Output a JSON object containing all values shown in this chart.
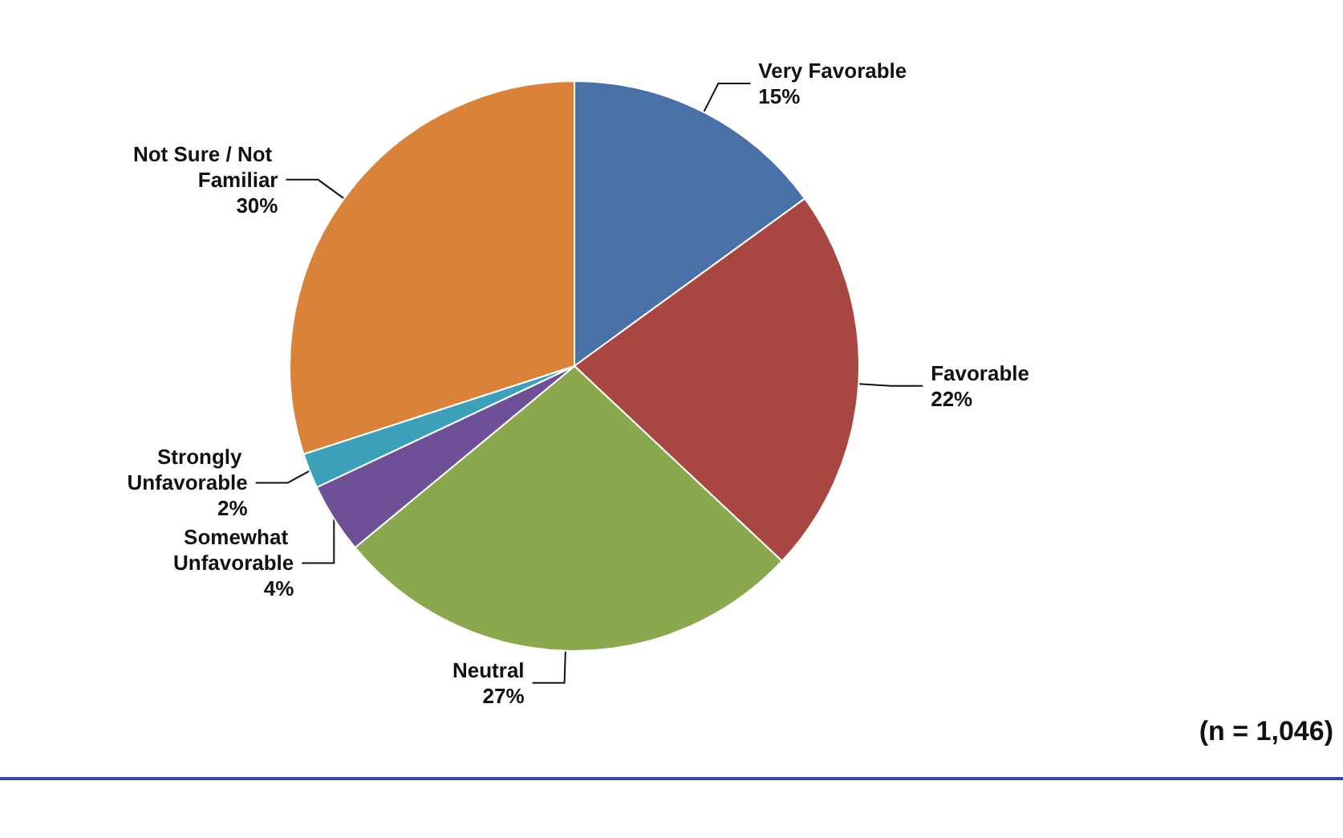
{
  "chart_data": {
    "type": "pie",
    "categories": [
      "Very Favorable",
      "Favorable",
      "Neutral",
      "Somewhat Unfavorable",
      "Strongly Unfavorable",
      "Not Sure / Not Familiar"
    ],
    "values": [
      15,
      22,
      27,
      4,
      2,
      30
    ],
    "value_labels": [
      "15%",
      "22%",
      "27%",
      "4%",
      "2%",
      "30%"
    ],
    "colors": [
      "#4a70a8",
      "#a84642",
      "#8aa84e",
      "#6d5096",
      "#3ba0b8",
      "#d9833a"
    ],
    "annotations": [
      "(n = 1,046)"
    ],
    "legend": false
  }
}
